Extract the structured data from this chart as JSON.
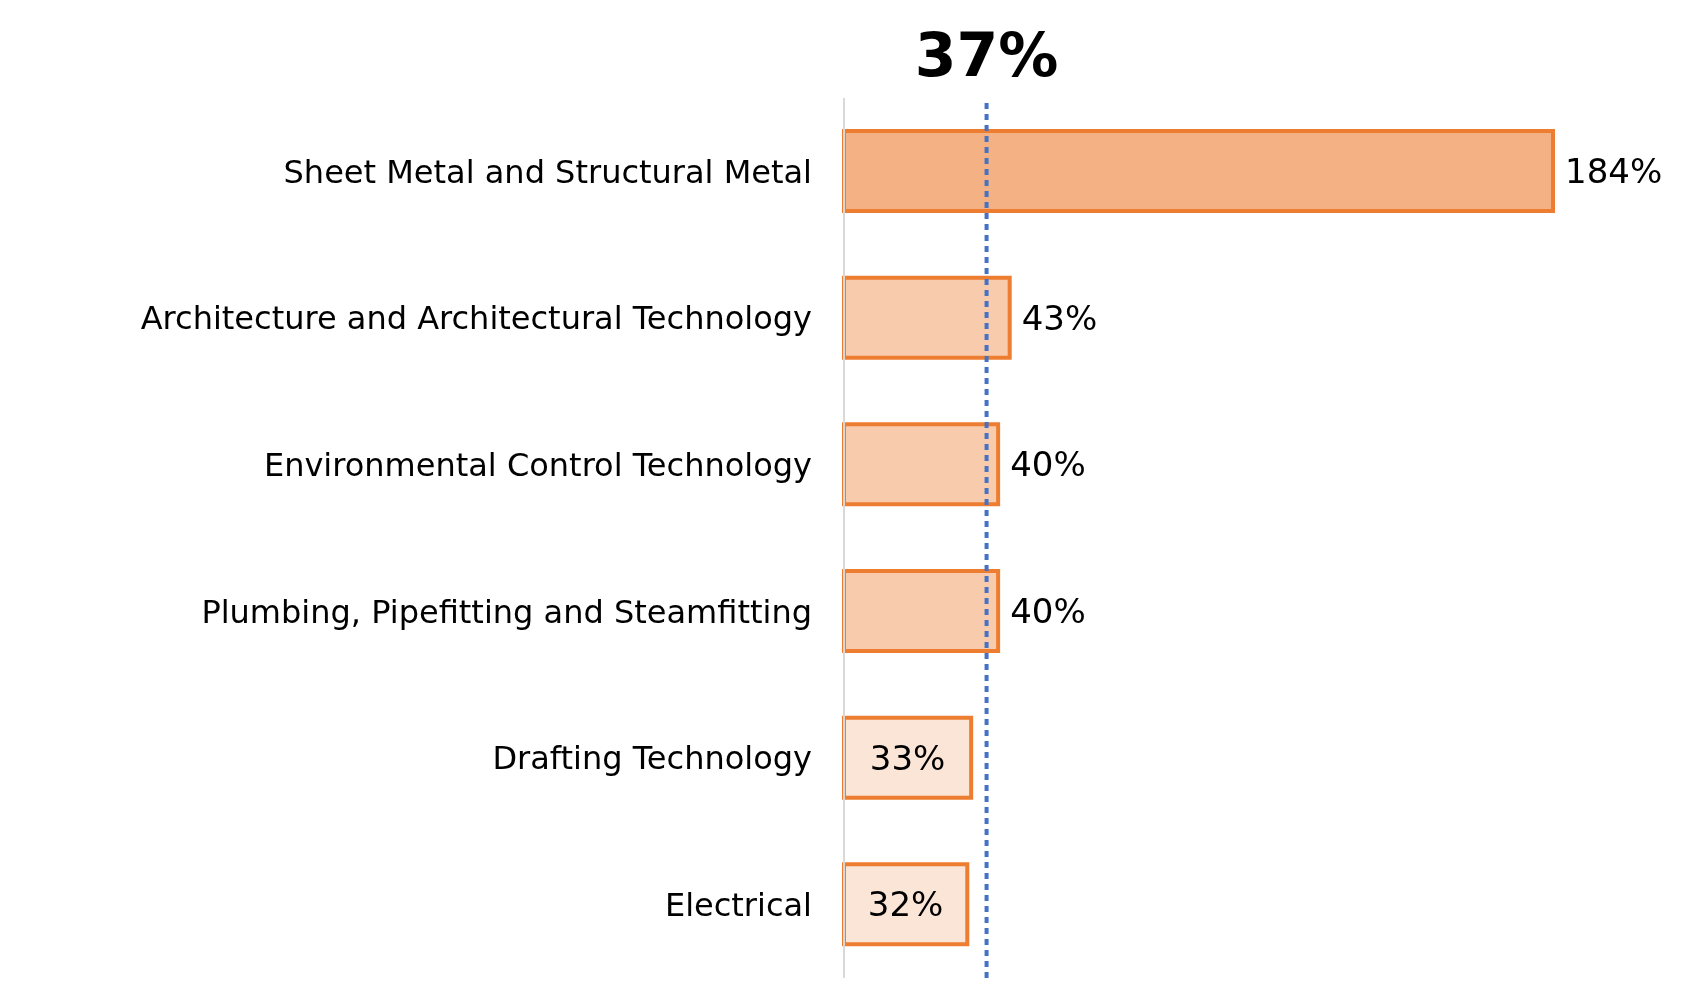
{
  "chart_data": {
    "type": "bar",
    "orientation": "horizontal",
    "categories": [
      "Sheet Metal and Structural Metal",
      "Architecture and Architectural Technology",
      "Environmental Control Technology",
      "Plumbing, Pipefitting and Steamfitting",
      "Drafting Technology",
      "Electrical"
    ],
    "values": [
      184,
      43,
      40,
      40,
      33,
      32
    ],
    "colors": [
      "#f4b183",
      "#f8cbad",
      "#f8cbad",
      "#f8cbad",
      "#fbe5d6",
      "#fbe5d6"
    ],
    "value_labels": [
      "184%",
      "43%",
      "40%",
      "40%",
      "33%",
      "32%"
    ],
    "ref_lines": [
      {
        "axis": "x",
        "value": 37,
        "label": "37%",
        "color": "#4472c4",
        "line_style": "dashed"
      }
    ],
    "grid": false,
    "legend": false
  }
}
